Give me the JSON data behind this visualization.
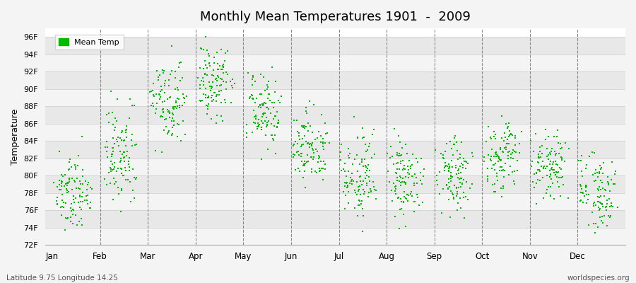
{
  "title": "Monthly Mean Temperatures 1901  -  2009",
  "ylabel": "Temperature",
  "xlabel_latitude": "Latitude 9.75 Longitude 14.25",
  "watermark": "worldspecies.org",
  "legend_label": "Mean Temp",
  "background_color": "#ffffff",
  "plot_bg_color": "#f4f4f4",
  "dot_color": "#00bb00",
  "dot_size": 3,
  "ylim": [
    72,
    97
  ],
  "yticks": [
    72,
    74,
    76,
    78,
    80,
    82,
    84,
    86,
    88,
    90,
    92,
    94,
    96
  ],
  "ytick_labels": [
    "72F",
    "74F",
    "76F",
    "78F",
    "80F",
    "82F",
    "84F",
    "86F",
    "88F",
    "90F",
    "92F",
    "94F",
    "96F"
  ],
  "months": [
    "Jan",
    "Feb",
    "Mar",
    "Apr",
    "May",
    "Jun",
    "Jul",
    "Aug",
    "Sep",
    "Oct",
    "Nov",
    "Dec"
  ],
  "month_means": [
    78.2,
    82.5,
    88.5,
    90.8,
    87.5,
    83.2,
    79.5,
    79.5,
    80.5,
    82.5,
    81.0,
    78.5
  ],
  "month_spreads": [
    2.0,
    3.0,
    2.2,
    2.0,
    2.0,
    2.2,
    2.5,
    2.2,
    2.2,
    2.0,
    2.0,
    2.2
  ],
  "n_years": 109,
  "stripe_colors": [
    "#f4f4f4",
    "#e8e8e8"
  ]
}
